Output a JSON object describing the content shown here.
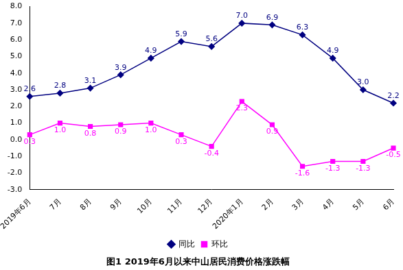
{
  "chart_data": {
    "type": "line",
    "title": "图1 2019年6月以来中山居民消费价格涨跌幅",
    "categories": [
      "2019年6月",
      "7月",
      "8月",
      "9月",
      "10月",
      "11月",
      "12月",
      "2020年1月",
      "2月",
      "3月",
      "4月",
      "5月",
      "6月"
    ],
    "series": [
      {
        "name": "同比",
        "color": "#000080",
        "marker": "diamond",
        "values": [
          2.6,
          2.8,
          3.1,
          3.9,
          4.9,
          5.9,
          5.6,
          7.0,
          6.9,
          6.3,
          4.9,
          3.0,
          2.2
        ],
        "value_labels": [
          "2.6",
          "2.8",
          "3.1",
          "3.9",
          "4.9",
          "5.9",
          "5.6",
          "7.0",
          "6.9",
          "6.3",
          "4.9",
          "3.0",
          "2.2"
        ]
      },
      {
        "name": "环比",
        "color": "#ff00ff",
        "marker": "square",
        "values": [
          0.3,
          1.0,
          0.8,
          0.9,
          1.0,
          0.3,
          -0.4,
          2.3,
          0.9,
          -1.6,
          -1.3,
          -1.3,
          -0.5
        ],
        "value_labels": [
          "0.3",
          "1.0",
          "0.8",
          "0.9",
          "1.0",
          "0.3",
          "-0.4",
          "2.3",
          "0.9",
          "-1.6",
          "-1.3",
          "-1.3",
          "-0.5"
        ]
      }
    ],
    "ylim": [
      -3,
      8
    ],
    "yticks": [
      {
        "value": -3,
        "label": "-3.0"
      },
      {
        "value": -2,
        "label": "-2.0"
      },
      {
        "value": -1,
        "label": "-1.0"
      },
      {
        "value": 0,
        "label": "0.0"
      },
      {
        "value": 1,
        "label": "1.0"
      },
      {
        "value": 2,
        "label": "2.0"
      },
      {
        "value": 3,
        "label": "3.0"
      },
      {
        "value": 4,
        "label": "4.0"
      },
      {
        "value": 5,
        "label": "5.0"
      },
      {
        "value": 6,
        "label": "6.0"
      },
      {
        "value": 7,
        "label": "7.0"
      },
      {
        "value": 8,
        "label": "8.0"
      }
    ],
    "grid": false,
    "legend": "bottom",
    "data_labels": true
  }
}
